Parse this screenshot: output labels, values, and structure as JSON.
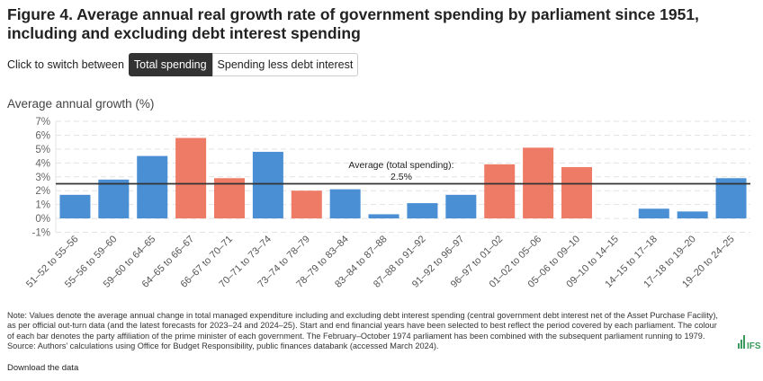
{
  "title": "Figure 4. Average annual real growth rate of government spending by parliament since 1951, including and excluding debt interest spending",
  "toggle": {
    "label": "Click to switch between",
    "options": [
      "Total spending",
      "Spending less debt interest"
    ],
    "selected": "Total spending"
  },
  "note": "Note: Values denote the average annual change in total managed expenditure including and excluding debt interest spending (central government debt interest net of the Asset Purchase Facility), as per official out-turn data (and the latest forecasts for 2023–24 and 2024–25). Start and end financial years have been selected to best reflect the period covered by each parliament. The colour of each bar denotes the party affiliation of the prime minister of each government. The February–October 1974 parliament has been combined with the subsequent parliament running to 1979. Source: Authors' calculations using Office for Budget Responsibility, public finances databank (accessed March 2024).",
  "download_label": "Download the data",
  "logo_text": "IFS",
  "colors": {
    "conservative": "#4a8fd4",
    "labour": "#ee7b65",
    "average_line": "#333333",
    "logo": "#3a9a5b"
  },
  "chart_data": {
    "type": "bar",
    "title": "",
    "ylabel": "Average annual growth (%)",
    "xlabel": "",
    "ylim": [
      -1,
      7
    ],
    "yticks": [
      "-1%",
      "0%",
      "1%",
      "2%",
      "3%",
      "4%",
      "5%",
      "6%",
      "7%"
    ],
    "grid": true,
    "categories": [
      "51–52 to 55–56",
      "55–56 to 59–60",
      "59–60 to 64–65",
      "64–65 to 66–67",
      "66–67 to 70–71",
      "70–71 to 73–74",
      "73–74 to 78–79",
      "78–79 to 83–84",
      "83–84 to 87–88",
      "87–88 to 91–92",
      "91–92 to 96–97",
      "96–97 to 01–02",
      "01–02 to 05–06",
      "05–06 to 09–10",
      "09–10 to 14–15",
      "14–15 to 17–18",
      "17–18 to 19–20",
      "19–20 to 24–25"
    ],
    "values": [
      1.7,
      2.8,
      4.5,
      5.8,
      2.9,
      4.8,
      2.0,
      2.1,
      0.3,
      1.1,
      1.7,
      3.9,
      5.1,
      3.7,
      0.0,
      0.7,
      0.5,
      2.9
    ],
    "party": [
      "conservative",
      "conservative",
      "conservative",
      "labour",
      "labour",
      "conservative",
      "labour",
      "conservative",
      "conservative",
      "conservative",
      "conservative",
      "labour",
      "labour",
      "labour",
      "conservative",
      "conservative",
      "conservative",
      "conservative"
    ],
    "average": {
      "value": 2.5,
      "label_line1": "Average (total spending):",
      "label_line2": "2.5%"
    }
  }
}
